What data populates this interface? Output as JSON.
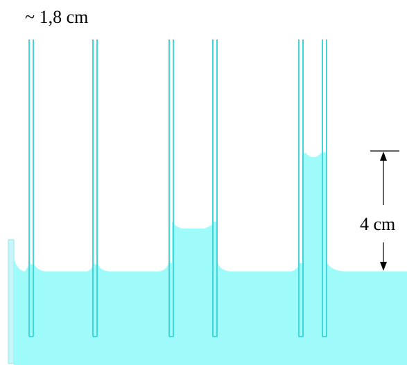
{
  "labels": {
    "spacing": "~ 1,8 cm",
    "height": "4 cm"
  },
  "colors": {
    "liquid": "#9ffafa",
    "liquid_edge": "#7fe6ea",
    "tube_wall": "#3fd6dc",
    "container_wall": "#c8f6f8",
    "dimension_line": "#000000",
    "background": "#ffffff"
  }
}
